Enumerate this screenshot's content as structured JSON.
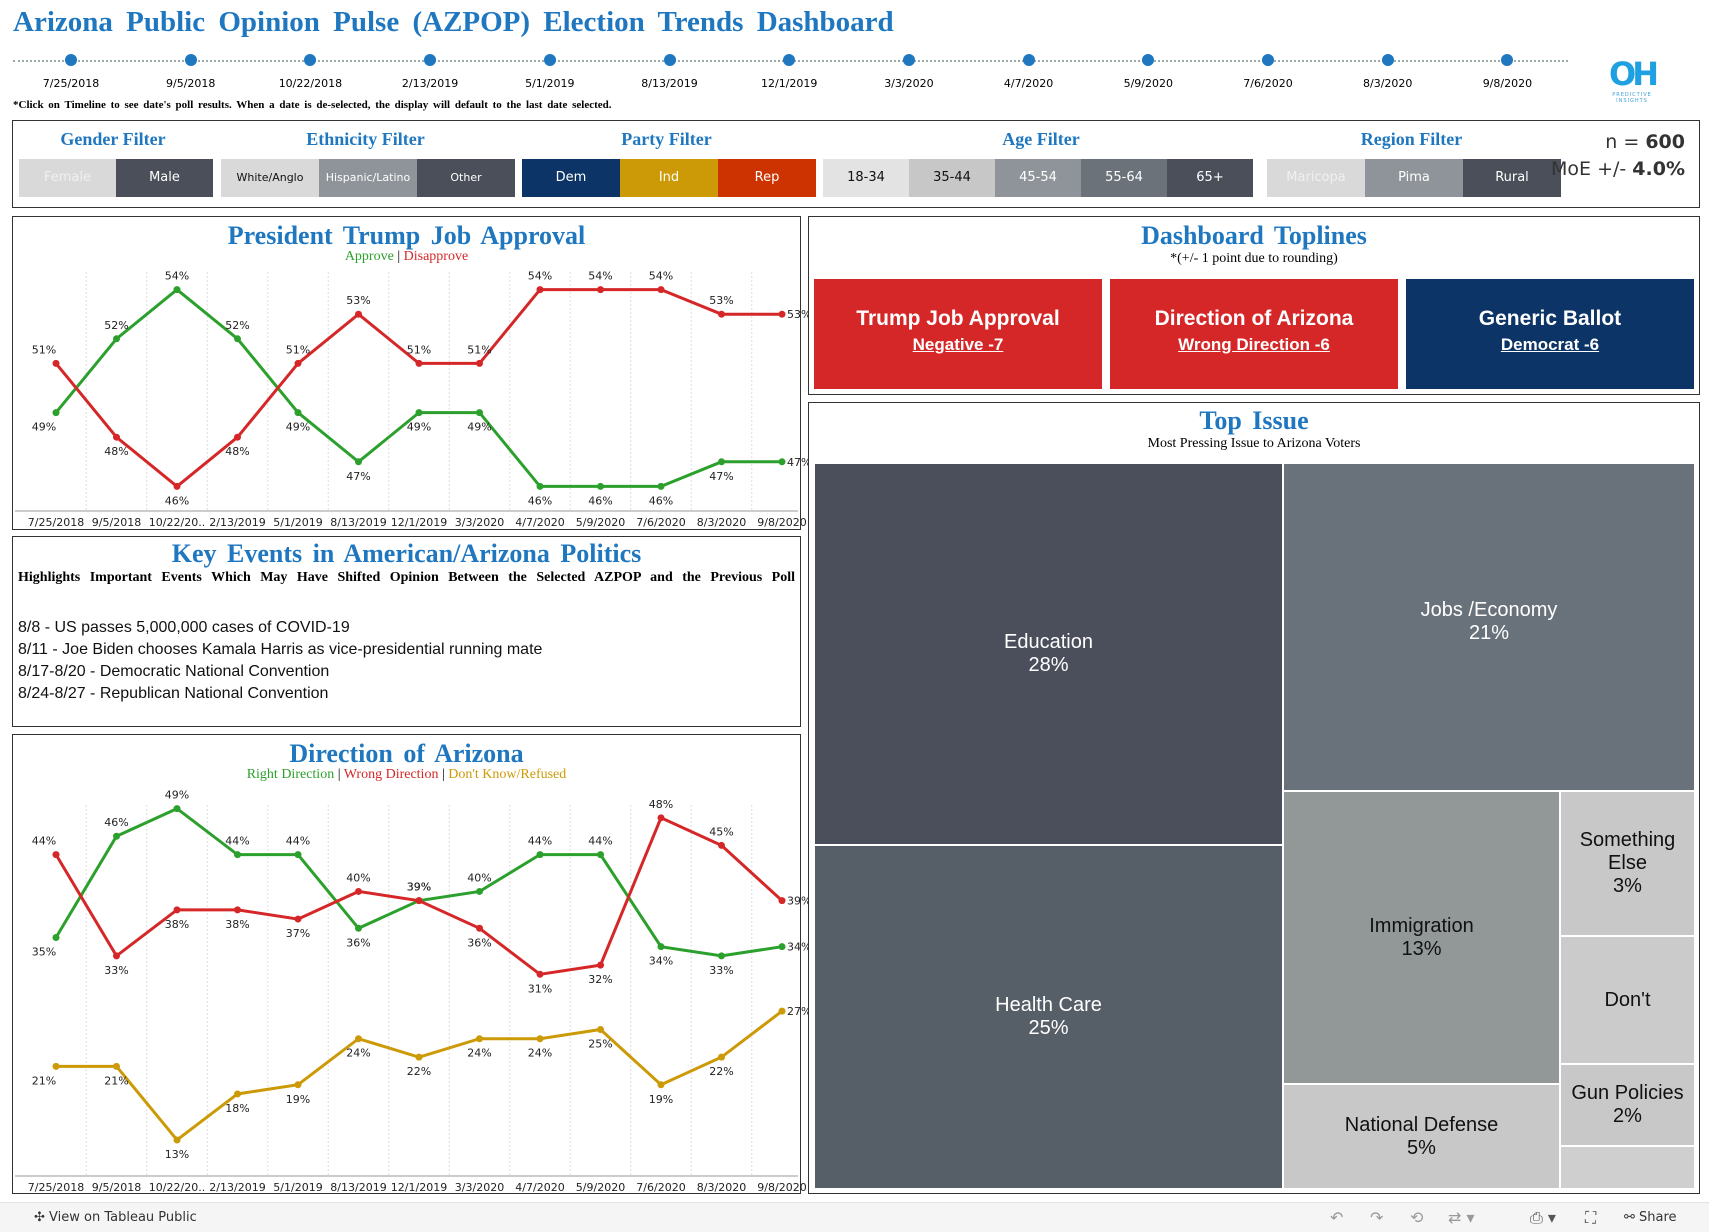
{
  "header": {
    "title": "Arizona Public Opinion Pulse (AZPOP) Election Trends Dashboard",
    "note": "*Click on Timeline to see date's poll results. When a date is de-selected, the display will default to the last date selected.",
    "logo_mark": "OH",
    "logo_text": "PREDICTIVE INSIGHTS"
  },
  "timeline": [
    "7/25/2018",
    "9/5/2018",
    "10/22/2018",
    "2/13/2019",
    "5/1/2019",
    "8/13/2019",
    "12/1/2019",
    "3/3/2020",
    "4/7/2020",
    "5/9/2020",
    "7/6/2020",
    "8/3/2020",
    "9/8/2020"
  ],
  "filters": {
    "gender": {
      "title": "Gender Filter",
      "options": [
        "Female",
        "Male"
      ]
    },
    "ethnicity": {
      "title": "Ethnicity Filter",
      "options": [
        "White/Anglo",
        "Hispanic/Latino",
        "Other"
      ]
    },
    "party": {
      "title": "Party Filter",
      "options": [
        "Dem",
        "Ind",
        "Rep"
      ]
    },
    "age": {
      "title": "Age Filter",
      "options": [
        "18-34",
        "35-44",
        "45-54",
        "55-64",
        "65+"
      ]
    },
    "region": {
      "title": "Region Filter",
      "options": [
        "Maricopa",
        "Pima",
        "Rural"
      ]
    },
    "sample": {
      "n_label": "n = ",
      "n_value": "600",
      "moe_label": "MoE +/- ",
      "moe_value": "4.0%"
    }
  },
  "colors": {
    "blue": "#1f77c0",
    "green": "#2ca02c",
    "red": "#d62728",
    "gold": "#cc9a06",
    "navy": "#0c3466"
  },
  "trump_panel": {
    "title": "President Trump Job Approval",
    "legend_approve": "Approve",
    "legend_sep": " | ",
    "legend_disapprove": "Disapprove"
  },
  "events_panel": {
    "title": "Key Events in American/Arizona Politics",
    "subtitle": "Highlights Important Events Which May Have Shifted Opinion Between the Selected AZPOP and the Previous Poll",
    "events": [
      "8/8 - US passes 5,000,000 cases of COVID-19",
      "8/11 - Joe Biden chooses Kamala Harris as vice-presidential running mate",
      "8/17-8/20 - Democratic National Convention",
      "8/24-8/27 - Republican National Convention"
    ]
  },
  "direction_panel": {
    "title": "Direction of Arizona",
    "legend_right": "Right Direction",
    "legend_wrong": "Wrong Direction",
    "legend_dk": "Don't Know/Refused",
    "sep": " | "
  },
  "toplines": {
    "title": "Dashboard Toplines",
    "subtitle": "*(+/- 1 point due to rounding)",
    "cards": [
      {
        "heading": "Trump Job Approval",
        "value": "Negative -7"
      },
      {
        "heading": "Direction of Arizona",
        "value": "Wrong Direction -6"
      },
      {
        "heading": "Generic Ballot",
        "value": "Democrat -6"
      }
    ]
  },
  "top_issue": {
    "title": "Top Issue",
    "subtitle": "Most Pressing Issue to Arizona Voters",
    "items": [
      {
        "label": "Education",
        "value": "28%"
      },
      {
        "label": "Health Care",
        "value": "25%"
      },
      {
        "label": "Jobs /Economy",
        "value": "21%"
      },
      {
        "label": "Immigration",
        "value": "13%"
      },
      {
        "label": "National Defense",
        "value": "5%"
      },
      {
        "label": "Something Else",
        "value": "3%"
      },
      {
        "label": "Don't",
        "value": ""
      },
      {
        "label": "Gun Policies",
        "value": "2%"
      }
    ]
  },
  "chart_data": [
    {
      "type": "line",
      "title": "President Trump Job Approval",
      "categories": [
        "7/25/2018",
        "9/5/2018",
        "10/22/20..",
        "2/13/2019",
        "5/1/2019",
        "8/13/2019",
        "12/1/2019",
        "3/3/2020",
        "4/7/2020",
        "5/9/2020",
        "7/6/2020",
        "8/3/2020",
        "9/8/2020"
      ],
      "series": [
        {
          "name": "Approve",
          "color": "#2ca02c",
          "values": [
            49,
            52,
            54,
            52,
            49,
            47,
            49,
            49,
            46,
            46,
            46,
            47,
            47
          ]
        },
        {
          "name": "Disapprove",
          "color": "#d62728",
          "values": [
            51,
            48,
            46,
            48,
            51,
            53,
            51,
            51,
            54,
            54,
            54,
            53,
            53
          ]
        }
      ],
      "ylim": [
        45,
        55
      ]
    },
    {
      "type": "line",
      "title": "Direction of Arizona",
      "categories": [
        "7/25/2018",
        "9/5/2018",
        "10/22/20..",
        "2/13/2019",
        "5/1/2019",
        "8/13/2019",
        "12/1/2019",
        "3/3/2020",
        "4/7/2020",
        "5/9/2020",
        "7/6/2020",
        "8/3/2020",
        "9/8/2020"
      ],
      "series": [
        {
          "name": "Right Direction",
          "color": "#2ca02c",
          "values": [
            35,
            46,
            49,
            44,
            44,
            36,
            39,
            40,
            44,
            44,
            34,
            33,
            34
          ]
        },
        {
          "name": "Wrong Direction",
          "color": "#d62728",
          "values": [
            44,
            33,
            38,
            38,
            37,
            40,
            39,
            36,
            31,
            32,
            48,
            45,
            39
          ]
        },
        {
          "name": "Don't Know/Refused",
          "color": "#cc9a06",
          "values": [
            21,
            21,
            13,
            18,
            19,
            24,
            22,
            24,
            24,
            25,
            19,
            22,
            27
          ]
        }
      ],
      "ylim": [
        8,
        52
      ]
    },
    {
      "type": "treemap",
      "title": "Top Issue",
      "categories": [
        "Education",
        "Health Care",
        "Jobs /Economy",
        "Immigration",
        "National Defense",
        "Something Else",
        "Don't",
        "Gun Policies"
      ],
      "values": [
        28,
        25,
        21,
        13,
        5,
        3,
        2,
        2
      ]
    }
  ]
}
